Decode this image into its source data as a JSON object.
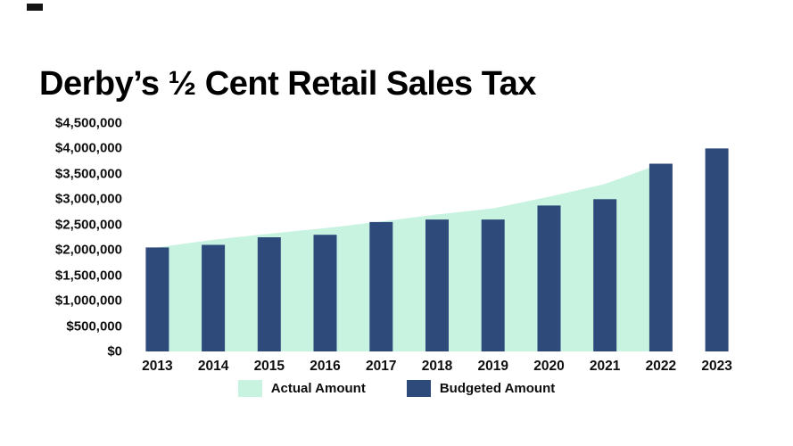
{
  "page": {
    "title": "Derby’s ½ Cent Retail Sales Tax"
  },
  "chart_data": {
    "type": "combo",
    "title": "Derby’s ½ Cent Retail Sales Tax",
    "categories": [
      "2013",
      "2014",
      "2015",
      "2016",
      "2017",
      "2018",
      "2019",
      "2020",
      "2021",
      "2022",
      "2023"
    ],
    "series": [
      {
        "name": "Actual Amount",
        "type": "area",
        "color": "#c8f3e1",
        "values": [
          2050000,
          2200000,
          2320000,
          2430000,
          2560000,
          2700000,
          2820000,
          3050000,
          3300000,
          3700000,
          null
        ]
      },
      {
        "name": "Budgeted Amount",
        "type": "bar",
        "color": "#2e4a7a",
        "values": [
          2050000,
          2100000,
          2250000,
          2300000,
          2550000,
          2600000,
          2600000,
          2875000,
          3000000,
          3700000,
          4000000
        ]
      }
    ],
    "ylim": [
      0,
      4500000
    ],
    "ytick_step": 500000,
    "yticks": [
      {
        "value": 0,
        "label": "$0"
      },
      {
        "value": 500000,
        "label": "$500,000"
      },
      {
        "value": 1000000,
        "label": "$1,000,000"
      },
      {
        "value": 1500000,
        "label": "$1,500,000"
      },
      {
        "value": 2000000,
        "label": "$2,000,000"
      },
      {
        "value": 2500000,
        "label": "$2,500,000"
      },
      {
        "value": 3000000,
        "label": "$3,000,000"
      },
      {
        "value": 3500000,
        "label": "$3,500,000"
      },
      {
        "value": 4000000,
        "label": "$4,000,000"
      },
      {
        "value": 4500000,
        "label": "$4,500,000"
      }
    ],
    "xlabel": "",
    "ylabel": "",
    "grid": false,
    "legend_position": "bottom"
  }
}
